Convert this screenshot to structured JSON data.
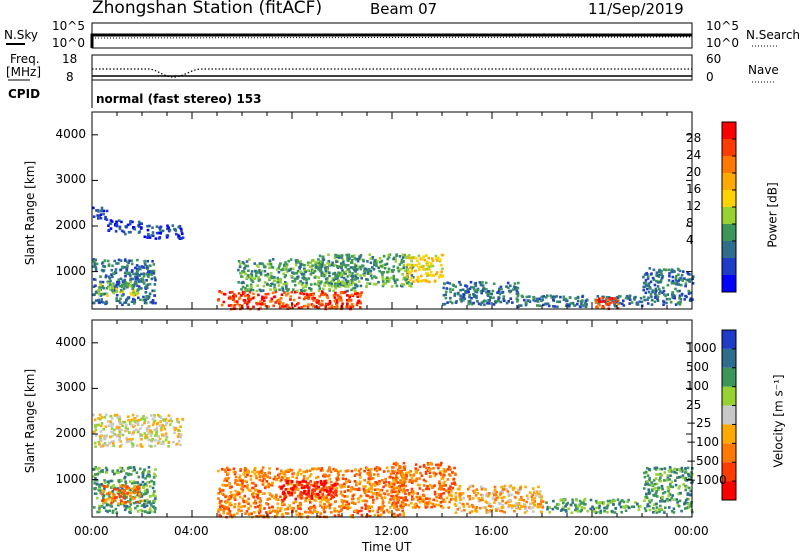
{
  "header": {
    "station_title": "Zhongshan Station (fitACF)",
    "beam_label": "Beam 07",
    "date": "11/Sep/2019"
  },
  "panels": {
    "nsky": {
      "label": "N.Sky",
      "ticks": [
        "10^5",
        "10^0"
      ],
      "right_label": "N.Search",
      "right_ticks": [
        "10^5",
        "10^0"
      ]
    },
    "freq": {
      "label_line1": "Freq.",
      "label_line2": "[MHz]",
      "ticks": [
        "18",
        "8"
      ],
      "right_label": "Nave",
      "right_ticks": [
        "60",
        "0"
      ]
    },
    "cpid": {
      "label": "CPID",
      "text": "normal (fast stereo) 153"
    }
  },
  "chart_data": [
    {
      "type": "heatmap",
      "name": "power",
      "ylabel": "Slant Range [km]",
      "xlabel": "",
      "ylim": [
        180,
        4500
      ],
      "xlim": [
        0,
        24
      ],
      "yticks": [
        1000,
        2000,
        3000,
        4000
      ],
      "colorbar": {
        "label": "Power [dB]",
        "ticks": [
          "28",
          "24",
          "20",
          "16",
          "12",
          "8",
          "4"
        ],
        "colors": [
          "#0000ff",
          "#1e3cc8",
          "#2d6e8c",
          "#3c965a",
          "#96d232",
          "#ffd200",
          "#ffaa00",
          "#ff7800",
          "#ff3c00",
          "#ff0000"
        ]
      },
      "regions": [
        {
          "x": [
            0.0,
            0.6
          ],
          "y": [
            2150,
            2450
          ],
          "level": 1
        },
        {
          "x": [
            0.6,
            2.0
          ],
          "y": [
            1850,
            2150
          ],
          "level": 1
        },
        {
          "x": [
            2.0,
            3.6
          ],
          "y": [
            1750,
            2050
          ],
          "level": 1
        },
        {
          "x": [
            0.0,
            2.5
          ],
          "y": [
            300,
            1300
          ],
          "level": 2
        },
        {
          "x": [
            0.2,
            1.8
          ],
          "y": [
            500,
            800
          ],
          "level": 4
        },
        {
          "x": [
            5.0,
            10.8
          ],
          "y": [
            200,
            600
          ],
          "level": 8
        },
        {
          "x": [
            5.8,
            10.5
          ],
          "y": [
            600,
            1300
          ],
          "level": 3
        },
        {
          "x": [
            9.0,
            12.8
          ],
          "y": [
            700,
            1400
          ],
          "level": 3
        },
        {
          "x": [
            12.5,
            14.0
          ],
          "y": [
            800,
            1400
          ],
          "level": 5
        },
        {
          "x": [
            14.0,
            17.0
          ],
          "y": [
            300,
            800
          ],
          "level": 2
        },
        {
          "x": [
            17.0,
            22.0
          ],
          "y": [
            250,
            500
          ],
          "level": 2
        },
        {
          "x": [
            20.0,
            21.0
          ],
          "y": [
            200,
            450
          ],
          "level": 8
        },
        {
          "x": [
            22.0,
            24.0
          ],
          "y": [
            300,
            1100
          ],
          "level": 2
        }
      ]
    },
    {
      "type": "heatmap",
      "name": "velocity",
      "ylabel": "Slant Range [km]",
      "xlabel": "Time UT",
      "ylim": [
        180,
        4500
      ],
      "xlim": [
        0,
        24
      ],
      "xticks": [
        "00:00",
        "04:00",
        "08:00",
        "12:00",
        "16:00",
        "20:00",
        "00:00"
      ],
      "yticks": [
        1000,
        2000,
        3000,
        4000
      ],
      "colorbar": {
        "label": "Velocity [m s⁻¹]",
        "ticks": [
          "1000",
          "500",
          "100",
          "25",
          "−25",
          "−100",
          "−500",
          "−1000"
        ],
        "colors": [
          "#ff0000",
          "#ff3c00",
          "#ff7800",
          "#ffaa00",
          "#c8c8c8",
          "#96d232",
          "#3c965a",
          "#2d6e8c",
          "#1e3cc8"
        ]
      },
      "regions": [
        {
          "x": [
            0.0,
            3.6
          ],
          "y": [
            1750,
            2450
          ],
          "level": 4
        },
        {
          "x": [
            0.0,
            2.5
          ],
          "y": [
            300,
            1300
          ],
          "level": 6
        },
        {
          "x": [
            0.3,
            2.0
          ],
          "y": [
            500,
            900
          ],
          "level": 2
        },
        {
          "x": [
            5.0,
            12.5
          ],
          "y": [
            200,
            1300
          ],
          "level": 2
        },
        {
          "x": [
            7.5,
            9.8
          ],
          "y": [
            600,
            1000
          ],
          "level": 0
        },
        {
          "x": [
            12.0,
            14.5
          ],
          "y": [
            400,
            1400
          ],
          "level": 2
        },
        {
          "x": [
            14.5,
            18.0
          ],
          "y": [
            300,
            900
          ],
          "level": 3
        },
        {
          "x": [
            18.0,
            22.0
          ],
          "y": [
            300,
            600
          ],
          "level": 6
        },
        {
          "x": [
            22.0,
            24.0
          ],
          "y": [
            300,
            1300
          ],
          "level": 6
        }
      ]
    }
  ]
}
